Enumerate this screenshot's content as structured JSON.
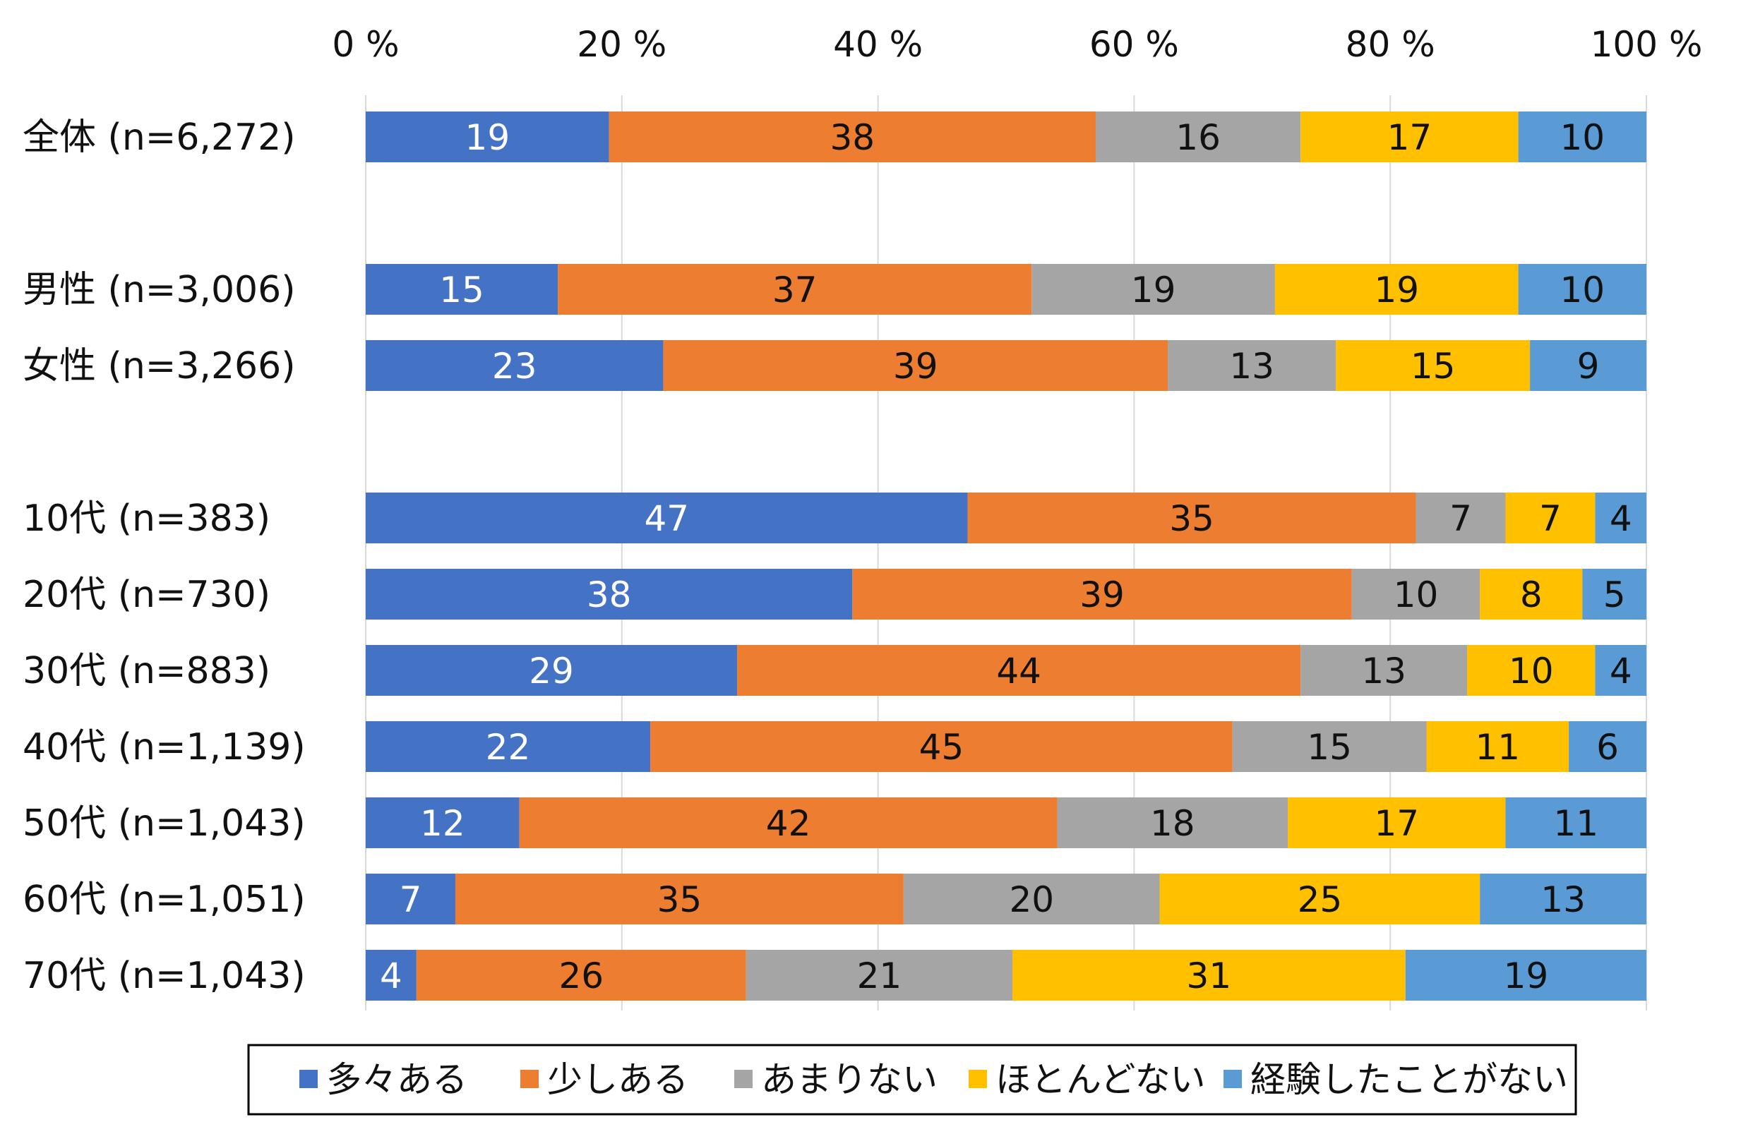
{
  "chart_data": {
    "type": "bar",
    "orientation": "horizontal",
    "stacked": "percent",
    "title": "",
    "xlabel": "",
    "ylabel": "",
    "xlim": [
      0,
      100
    ],
    "x_ticks": [
      "0 %",
      "20 %",
      "40 %",
      "60 %",
      "80 %",
      "100 %"
    ],
    "grid": true,
    "legend_position": "bottom",
    "categories": [
      "全体 (n=6,272)",
      "男性 (n=3,006)",
      "女性 (n=3,266)",
      "10代 (n=383)",
      "20代 (n=730)",
      "30代 (n=883)",
      "40代 (n=1,139)",
      "50代 (n=1,043)",
      "60代 (n=1,051)",
      "70代 (n=1,043)"
    ],
    "series": [
      {
        "name": "多々ある",
        "color": "#4472C4",
        "label_color": "#ffffff",
        "values": [
          19,
          15,
          23,
          47,
          38,
          29,
          22,
          12,
          7,
          4
        ]
      },
      {
        "name": "少しある",
        "color": "#ED7D31",
        "label_color": "#111111",
        "values": [
          38,
          37,
          39,
          35,
          39,
          44,
          45,
          42,
          35,
          26
        ]
      },
      {
        "name": "あまりない",
        "color": "#A5A5A5",
        "label_color": "#111111",
        "values": [
          16,
          19,
          13,
          7,
          10,
          13,
          15,
          18,
          20,
          21
        ]
      },
      {
        "name": "ほとんどない",
        "color": "#FFC000",
        "label_color": "#111111",
        "values": [
          17,
          19,
          15,
          7,
          8,
          10,
          11,
          17,
          25,
          31
        ]
      },
      {
        "name": "経験したことがない",
        "color": "#5B9BD5",
        "label_color": "#111111",
        "values": [
          10,
          10,
          9,
          4,
          5,
          4,
          6,
          11,
          13,
          19
        ]
      }
    ]
  }
}
